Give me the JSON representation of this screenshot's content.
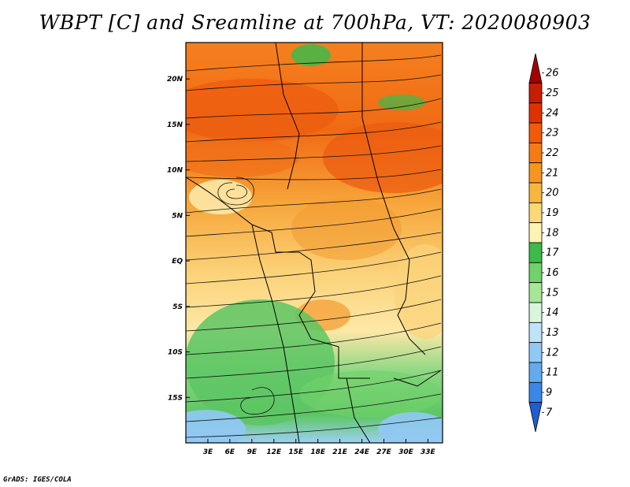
{
  "title": "WBPT [C] and Sreamline at 700hPa, VT: 2020080903",
  "credit": "GrADS: IGES/COLA",
  "map": {
    "region": "Central Africa",
    "lon_range": [
      0,
      35
    ],
    "lat_range": [
      -20,
      24
    ],
    "lon_ticks": [
      "3E",
      "6E",
      "9E",
      "12E",
      "15E",
      "18E",
      "21E",
      "24E",
      "27E",
      "30E",
      "33E"
    ],
    "lon_values": [
      3,
      6,
      9,
      12,
      15,
      18,
      21,
      24,
      27,
      30,
      33
    ],
    "lat_ticks": [
      "20N",
      "15N",
      "10N",
      "5N",
      "EQ",
      "5S",
      "10S",
      "15S"
    ],
    "lat_values": [
      20,
      15,
      10,
      5,
      0,
      -5,
      -10,
      -15
    ]
  },
  "colorbar": {
    "labels": [
      "26",
      "25",
      "24",
      "23",
      "22",
      "21",
      "20",
      "19",
      "18",
      "17",
      "16",
      "15",
      "14",
      "13",
      "12",
      "11",
      "9",
      "7"
    ],
    "colors": [
      "#a50000",
      "#c81e00",
      "#e03200",
      "#f05a0a",
      "#f57c14",
      "#f7961e",
      "#f8b73c",
      "#fbd978",
      "#fdf3b4",
      "#3dba4a",
      "#6fd26a",
      "#a6e697",
      "#d9f5dc",
      "#c0e2fa",
      "#91c8f5",
      "#64aaf0",
      "#3a87e6",
      "#1e5fd2"
    ]
  }
}
